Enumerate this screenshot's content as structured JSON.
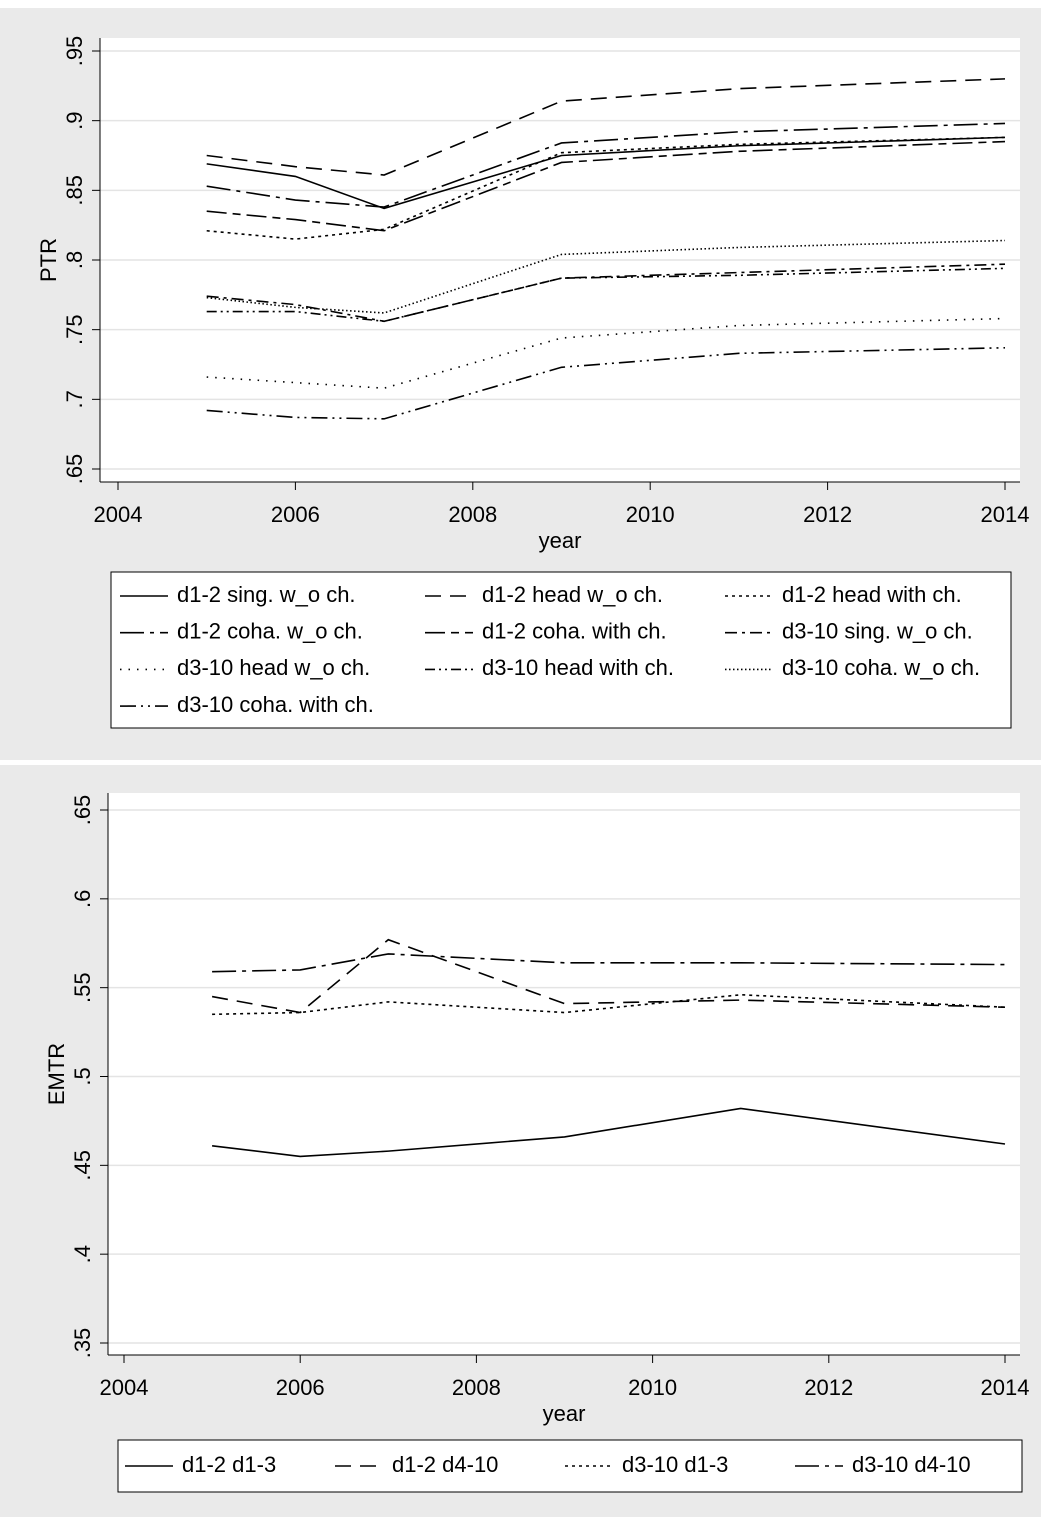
{
  "chart_data": [
    {
      "type": "line",
      "y_label": "PTR",
      "x_label": "year",
      "color": "#000000",
      "grid": true,
      "x": [
        2005,
        2006,
        2007,
        2009,
        2011,
        2014
      ],
      "xlim": [
        2004,
        2014
      ],
      "xticks": [
        2004,
        2006,
        2008,
        2010,
        2012,
        2014
      ],
      "ylim": [
        0.65,
        0.95
      ],
      "yticks": [
        {
          "value": 0.65,
          "label": ".65"
        },
        {
          "value": 0.7,
          "label": ".7"
        },
        {
          "value": 0.75,
          "label": ".75"
        },
        {
          "value": 0.8,
          "label": ".8"
        },
        {
          "value": 0.85,
          "label": ".85"
        },
        {
          "value": 0.9,
          "label": ".9"
        },
        {
          "value": 0.95,
          "label": ".95"
        }
      ],
      "series": [
        {
          "name": "d1-2 sing. w_o ch.",
          "style": "solid",
          "values": [
            0.869,
            0.86,
            0.837,
            0.875,
            0.882,
            0.888
          ]
        },
        {
          "name": "d1-2 head w_o ch.",
          "style": "dash",
          "values": [
            0.875,
            0.867,
            0.861,
            0.914,
            0.923,
            0.93
          ]
        },
        {
          "name": "d1-2 head with ch.",
          "style": "dot",
          "values": [
            0.821,
            0.815,
            0.822,
            0.877,
            0.883,
            0.888
          ]
        },
        {
          "name": "d1-2 coha. w_o ch.",
          "style": "longdashdot",
          "values": [
            0.853,
            0.843,
            0.838,
            0.884,
            0.892,
            0.898
          ]
        },
        {
          "name": "d1-2 coha. with ch.",
          "style": "longdashshort",
          "values": [
            0.835,
            0.829,
            0.821,
            0.87,
            0.878,
            0.885
          ]
        },
        {
          "name": "d3-10 sing. w_o ch.",
          "style": "dashdot",
          "values": [
            0.774,
            0.768,
            0.756,
            0.787,
            0.791,
            0.797
          ]
        },
        {
          "name": "d3-10 head w_o ch.",
          "style": "sparsedot",
          "values": [
            0.716,
            0.712,
            0.708,
            0.744,
            0.753,
            0.758
          ]
        },
        {
          "name": "d3-10 head with ch.",
          "style": "dashdotdot",
          "values": [
            0.763,
            0.763,
            0.756,
            0.787,
            0.789,
            0.794
          ]
        },
        {
          "name": "d3-10 coha. w_o ch.",
          "style": "densedot",
          "values": [
            0.773,
            0.766,
            0.762,
            0.804,
            0.809,
            0.814
          ]
        },
        {
          "name": "d3-10 coha. with ch.",
          "style": "longdashdotdot",
          "values": [
            0.692,
            0.687,
            0.686,
            0.723,
            0.733,
            0.737
          ]
        }
      ]
    },
    {
      "type": "line",
      "y_label": "EMTR",
      "x_label": "year",
      "color": "#000000",
      "grid": true,
      "x": [
        2005,
        2006,
        2007,
        2009,
        2011,
        2014
      ],
      "xlim": [
        2004,
        2014
      ],
      "xticks": [
        2004,
        2006,
        2008,
        2010,
        2012,
        2014
      ],
      "ylim": [
        0.35,
        0.65
      ],
      "yticks": [
        {
          "value": 0.35,
          "label": ".35"
        },
        {
          "value": 0.4,
          "label": ".4"
        },
        {
          "value": 0.45,
          "label": ".45"
        },
        {
          "value": 0.5,
          "label": ".5"
        },
        {
          "value": 0.55,
          "label": ".55"
        },
        {
          "value": 0.6,
          "label": ".6"
        },
        {
          "value": 0.65,
          "label": ".65"
        }
      ],
      "series": [
        {
          "name": "d1-2 d1-3",
          "style": "solid",
          "values": [
            0.461,
            0.455,
            0.458,
            0.466,
            0.482,
            0.462
          ]
        },
        {
          "name": "d1-2 d4-10",
          "style": "dash",
          "values": [
            0.545,
            0.536,
            0.577,
            0.541,
            0.543,
            0.539
          ]
        },
        {
          "name": "d3-10 d1-3",
          "style": "dot",
          "values": [
            0.535,
            0.536,
            0.542,
            0.536,
            0.546,
            0.539
          ]
        },
        {
          "name": "d3-10 d4-10",
          "style": "longdashdot",
          "values": [
            0.559,
            0.56,
            0.569,
            0.564,
            0.564,
            0.563
          ]
        }
      ]
    }
  ]
}
